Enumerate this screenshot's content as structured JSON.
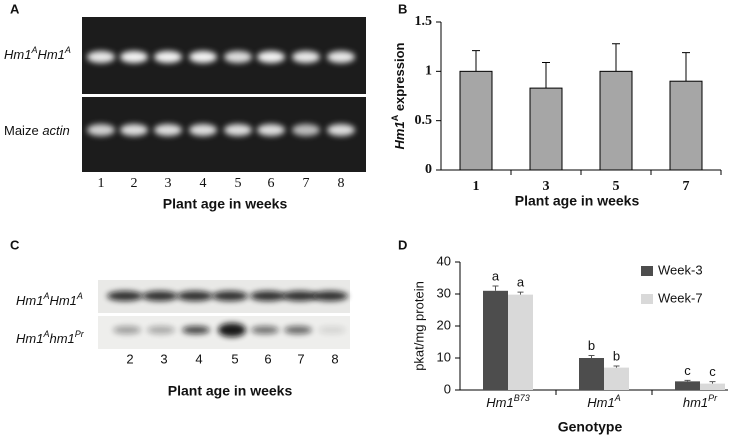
{
  "chart_data": [
    {
      "type": "bar",
      "panel": "B",
      "ylabel": [
        "Hm1",
        "A",
        " expression"
      ],
      "xlabel": "Plant age in weeks",
      "categories": [
        "1",
        "3",
        "5",
        "7"
      ],
      "values": [
        1.0,
        0.83,
        1.0,
        0.9
      ],
      "errors": [
        0.21,
        0.26,
        0.28,
        0.29
      ],
      "color": "#a6a6a6",
      "ylim": [
        0,
        1.5
      ],
      "yticks": [
        0,
        0.5,
        1,
        1.5
      ],
      "grid": false
    },
    {
      "type": "bar",
      "panel": "D",
      "ylabel": "pkat/mg protein",
      "xlabel": "Genotype",
      "categories": [
        [
          "Hm1",
          "B73"
        ],
        [
          "Hm1",
          "A"
        ],
        [
          "hm1",
          "Pr"
        ]
      ],
      "series": [
        {
          "name": "Week-3",
          "color": "#4d4d4d",
          "values": [
            31,
            10,
            2.7
          ],
          "errors": [
            1.5,
            0.8,
            0.3
          ],
          "letters": [
            "a",
            "b",
            "c"
          ]
        },
        {
          "name": "Week-7",
          "color": "#d9d9d9",
          "values": [
            29.8,
            7,
            2
          ],
          "errors": [
            0.8,
            0.5,
            0.6
          ],
          "letters": [
            "a",
            "b",
            "c"
          ]
        }
      ],
      "ylim": [
        0,
        40
      ],
      "yticks": [
        0,
        10,
        20,
        30,
        40
      ],
      "grid": false,
      "legend": "upper right"
    }
  ],
  "gel_a": {
    "panel": "A",
    "row1": [
      "Hm1",
      "A",
      "Hm1",
      "A"
    ],
    "row2": {
      "plain": "Maize",
      "italic": "actin"
    },
    "lanes": [
      1,
      2,
      3,
      4,
      5,
      6,
      7,
      8
    ],
    "xlabel": "Plant age in weeks"
  },
  "gel_c": {
    "panel": "C",
    "row1": [
      "Hm1",
      "A",
      "Hm1",
      "A"
    ],
    "row2": [
      "Hm1",
      "A",
      "hm1",
      "Pr"
    ],
    "lanes": [
      2,
      3,
      4,
      5,
      6,
      7,
      8
    ],
    "xlabel": "Plant age in weeks"
  }
}
